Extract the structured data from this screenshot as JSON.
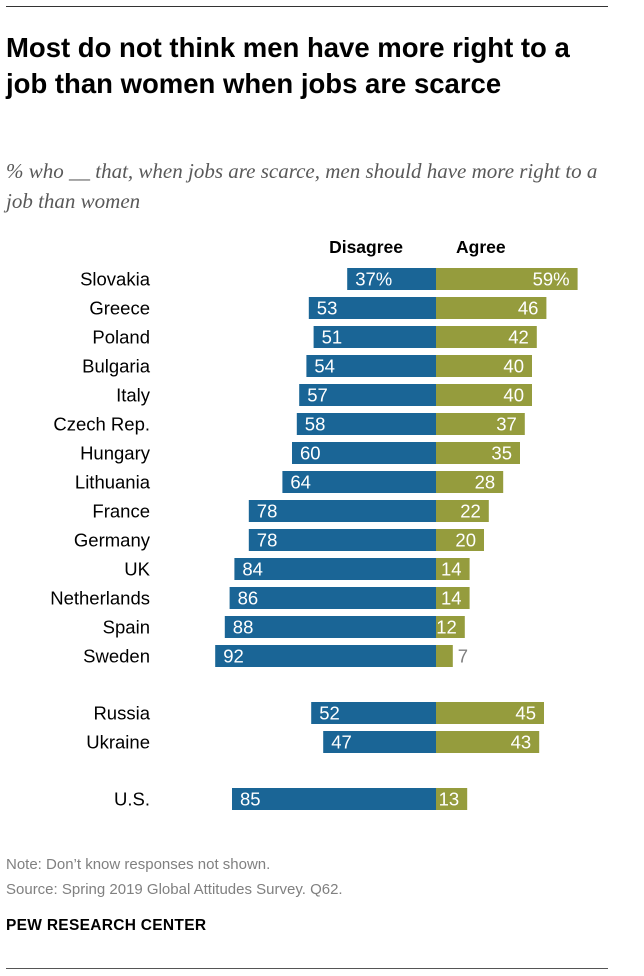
{
  "title": "Most do not think men have more right to a job than women when jobs are scarce",
  "subtitle": "% who __ that, when jobs are scarce, men should have more right to a job than women",
  "colors": {
    "disagree": "#1a6596",
    "agree": "#959c3d",
    "label_on_bar": "#ffffff",
    "label_off_bar": "#7f7f7f"
  },
  "chart_data": {
    "type": "bar",
    "orientation": "horizontal-diverging",
    "legend": [
      "Disagree",
      "Agree"
    ],
    "categories": [
      "Slovakia",
      "Greece",
      "Poland",
      "Bulgaria",
      "Italy",
      "Czech Rep.",
      "Hungary",
      "Lithuania",
      "France",
      "Germany",
      "UK",
      "Netherlands",
      "Spain",
      "Sweden",
      "Russia",
      "Ukraine",
      "U.S."
    ],
    "groups": [
      [
        "Slovakia",
        "Greece",
        "Poland",
        "Bulgaria",
        "Italy",
        "Czech Rep.",
        "Hungary",
        "Lithuania",
        "France",
        "Germany",
        "UK",
        "Netherlands",
        "Spain",
        "Sweden"
      ],
      [
        "Russia",
        "Ukraine"
      ],
      [
        "U.S."
      ]
    ],
    "series": [
      {
        "name": "Disagree",
        "values": [
          37,
          53,
          51,
          54,
          57,
          58,
          60,
          64,
          78,
          78,
          84,
          86,
          88,
          92,
          52,
          47,
          85
        ],
        "labels": [
          "37%",
          "53",
          "51",
          "54",
          "57",
          "58",
          "60",
          "64",
          "78",
          "78",
          "84",
          "86",
          "88",
          "92",
          "52",
          "47",
          "85"
        ]
      },
      {
        "name": "Agree",
        "values": [
          59,
          46,
          42,
          40,
          40,
          37,
          35,
          28,
          22,
          20,
          14,
          14,
          12,
          7,
          45,
          43,
          13
        ],
        "labels": [
          "59%",
          "46",
          "42",
          "40",
          "40",
          "37",
          "35",
          "28",
          "22",
          "20",
          "14",
          "14",
          "12",
          "7",
          "45",
          "43",
          "13"
        ]
      }
    ],
    "units": "%"
  },
  "footer": {
    "note": "Note: Don’t know responses not shown.",
    "source": "Source: Spring 2019 Global Attitudes Survey. Q62.",
    "brand": "PEW RESEARCH CENTER"
  }
}
